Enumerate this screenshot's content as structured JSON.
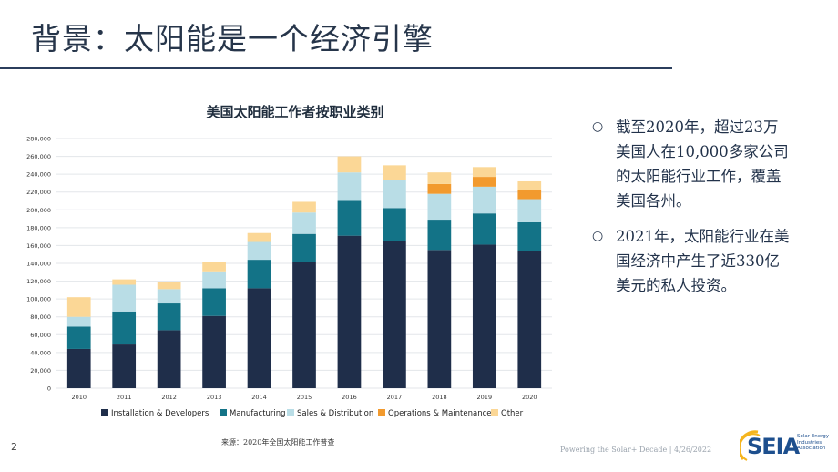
{
  "slide": {
    "title": "背景：太阳能是一个经济引擎",
    "page_number": "2",
    "source": "来源：2020年全国太阳能工作普查",
    "footer": "Powering the Solar+ Decade | 4/26/2022",
    "logo_text": "SEIA",
    "logo_subtext": "Solar Energy Industries Association",
    "bullets": [
      "截至2020年，超过23万美国人在10,000多家公司的太阳能行业工作，覆盖美国各州。",
      "2021年，太阳能行业在美国经济中产生了近330亿美元的私人投资。"
    ]
  },
  "chart_data": {
    "type": "bar",
    "stacked": true,
    "title": "美国太阳能工作者按职业类别",
    "categories": [
      "2010",
      "2011",
      "2012",
      "2013",
      "2014",
      "2015",
      "2016",
      "2017",
      "2018",
      "2019",
      "2020"
    ],
    "ylim": [
      0,
      280000
    ],
    "yticks": [
      0,
      20000,
      40000,
      60000,
      80000,
      100000,
      120000,
      140000,
      160000,
      180000,
      200000,
      220000,
      240000,
      260000,
      280000
    ],
    "ytick_labels": [
      "0",
      "20,000",
      "40,000",
      "60,000",
      "80,000",
      "100,000",
      "120,000",
      "140,000",
      "160,000",
      "180,000",
      "200,000",
      "220,000",
      "240,000",
      "260,000",
      "280,000"
    ],
    "grid": true,
    "legend_position": "bottom",
    "series": [
      {
        "name": "Installation & Developers",
        "color": "#1f2e4a",
        "values": [
          44000,
          49000,
          65000,
          81000,
          112000,
          142000,
          171000,
          165000,
          155000,
          161000,
          154000
        ]
      },
      {
        "name": "Manufacturing",
        "color": "#137387",
        "values": [
          25000,
          37000,
          30000,
          31000,
          32000,
          31000,
          39000,
          37000,
          34000,
          35000,
          32000
        ]
      },
      {
        "name": "Sales & Distribution",
        "color": "#b9dde6",
        "values": [
          11000,
          30000,
          16000,
          19000,
          20000,
          24000,
          32000,
          31000,
          29000,
          30000,
          26000
        ]
      },
      {
        "name": "Operations & Maintenance",
        "color": "#f29a2e",
        "values": [
          0,
          0,
          0,
          0,
          0,
          0,
          0,
          0,
          11000,
          11000,
          10000
        ]
      },
      {
        "name": "Other",
        "color": "#fbd796",
        "values": [
          22000,
          6000,
          8000,
          11000,
          10000,
          12000,
          18000,
          17000,
          13000,
          11000,
          10000
        ]
      }
    ]
  }
}
